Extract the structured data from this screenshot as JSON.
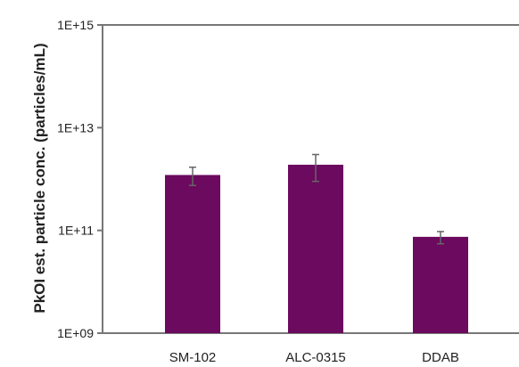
{
  "chart_data": {
    "type": "bar",
    "title": "",
    "xlabel": "",
    "ylabel": "PkOI est. particle conc. (particles/mL)",
    "yscale": "log",
    "ylim": [
      1000000000.0,
      1000000000000000.0
    ],
    "yticks": [
      1000000000.0,
      100000000000.0,
      10000000000000.0,
      1000000000000000.0
    ],
    "ytick_labels": [
      "1E+09",
      "1E+11",
      "1E+13",
      "1E+15"
    ],
    "grid": false,
    "legend": "none",
    "categories": [
      "SM-102",
      "ALC-0315",
      "DDAB"
    ],
    "values": [
      1200000000000.0,
      1900000000000.0,
      75000000000.0
    ],
    "error_low": [
      750000000000.0,
      900000000000.0,
      55000000000.0
    ],
    "error_high": [
      1700000000000.0,
      3000000000000.0,
      95000000000.0
    ],
    "bar_color": "#6b0a5e",
    "error_color": "#666666",
    "axis_color": "#777777"
  }
}
